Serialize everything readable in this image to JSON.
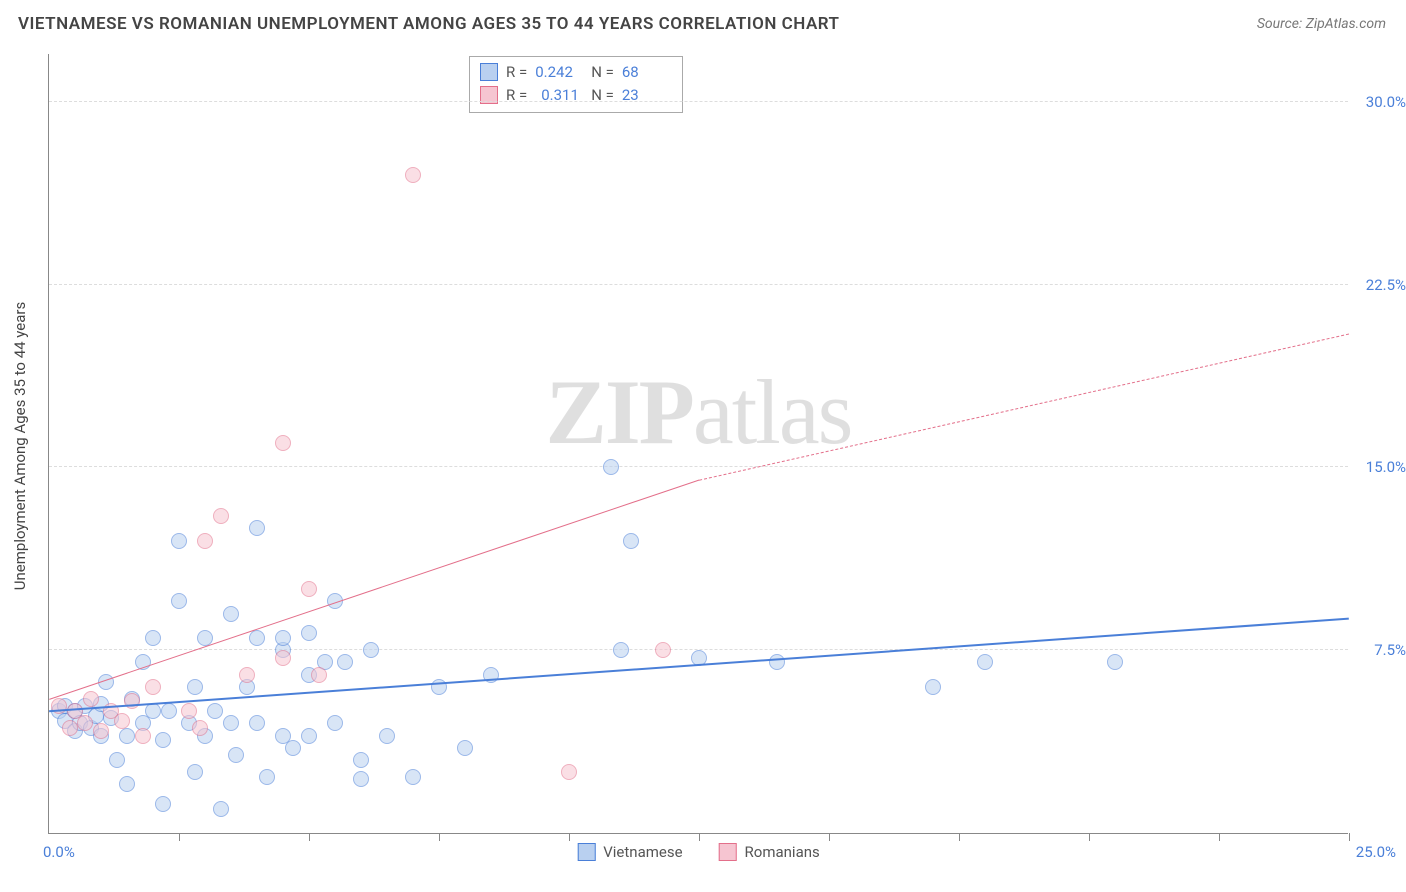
{
  "title": "VIETNAMESE VS ROMANIAN UNEMPLOYMENT AMONG AGES 35 TO 44 YEARS CORRELATION CHART",
  "source_prefix": "Source: ",
  "source_name": "ZipAtlas.com",
  "watermark_a": "ZIP",
  "watermark_b": "atlas",
  "chart": {
    "type": "scatter",
    "y_axis_label": "Unemployment Among Ages 35 to 44 years",
    "xlim": [
      0,
      25
    ],
    "ylim": [
      0,
      32
    ],
    "y_ticks": [
      7.5,
      15.0,
      22.5,
      30.0
    ],
    "y_tick_labels": [
      "7.5%",
      "15.0%",
      "22.5%",
      "30.0%"
    ],
    "x_ticks": [
      2.5,
      5,
      7.5,
      10,
      12.5,
      15,
      17.5,
      20,
      22.5,
      25
    ],
    "x_origin_label": "0.0%",
    "x_max_label": "25.0%",
    "background_color": "#ffffff",
    "grid_color": "#dddddd",
    "axis_color": "#888888",
    "tick_label_color": "#4a7fd8",
    "point_radius": 8,
    "point_opacity": 0.55,
    "series": [
      {
        "name": "Vietnamese",
        "stroke": "#4a7fd8",
        "fill": "#b9d0f0",
        "r_label": "R =",
        "r_value": "0.242",
        "n_label": "N =",
        "n_value": "68",
        "trend": {
          "x1": 0,
          "y1": 5.0,
          "x2": 25,
          "y2": 8.8,
          "width": 2.5,
          "dash": false
        },
        "points": [
          [
            0.2,
            5.0
          ],
          [
            0.3,
            4.6
          ],
          [
            0.3,
            5.2
          ],
          [
            0.5,
            4.2
          ],
          [
            0.5,
            5.0
          ],
          [
            0.6,
            4.5
          ],
          [
            0.7,
            5.2
          ],
          [
            0.8,
            4.3
          ],
          [
            0.9,
            4.8
          ],
          [
            1.0,
            4.0
          ],
          [
            1.0,
            5.3
          ],
          [
            1.1,
            6.2
          ],
          [
            1.2,
            4.7
          ],
          [
            1.3,
            3.0
          ],
          [
            1.5,
            2.0
          ],
          [
            1.5,
            4.0
          ],
          [
            1.6,
            5.5
          ],
          [
            1.8,
            4.5
          ],
          [
            1.8,
            7.0
          ],
          [
            2.0,
            5.0
          ],
          [
            2.0,
            8.0
          ],
          [
            2.2,
            1.2
          ],
          [
            2.2,
            3.8
          ],
          [
            2.3,
            5.0
          ],
          [
            2.5,
            12.0
          ],
          [
            2.5,
            9.5
          ],
          [
            2.7,
            4.5
          ],
          [
            2.8,
            2.5
          ],
          [
            2.8,
            6.0
          ],
          [
            3.0,
            4.0
          ],
          [
            3.0,
            8.0
          ],
          [
            3.2,
            5.0
          ],
          [
            3.3,
            1.0
          ],
          [
            3.5,
            4.5
          ],
          [
            3.5,
            9.0
          ],
          [
            3.6,
            3.2
          ],
          [
            3.8,
            6.0
          ],
          [
            4.0,
            4.5
          ],
          [
            4.0,
            8.0
          ],
          [
            4.0,
            12.5
          ],
          [
            4.2,
            2.3
          ],
          [
            4.5,
            7.5
          ],
          [
            4.5,
            4.0
          ],
          [
            4.5,
            8.0
          ],
          [
            4.7,
            3.5
          ],
          [
            5.0,
            6.5
          ],
          [
            5.0,
            8.2
          ],
          [
            5.0,
            4.0
          ],
          [
            5.3,
            7.0
          ],
          [
            5.5,
            9.5
          ],
          [
            5.5,
            4.5
          ],
          [
            5.7,
            7.0
          ],
          [
            6.0,
            3.0
          ],
          [
            6.0,
            2.2
          ],
          [
            6.2,
            7.5
          ],
          [
            6.5,
            4.0
          ],
          [
            7.0,
            2.3
          ],
          [
            7.5,
            6.0
          ],
          [
            8.0,
            3.5
          ],
          [
            8.5,
            6.5
          ],
          [
            10.8,
            15.0
          ],
          [
            11.2,
            12.0
          ],
          [
            12.5,
            7.2
          ],
          [
            17.0,
            6.0
          ],
          [
            18.0,
            7.0
          ],
          [
            20.5,
            7.0
          ],
          [
            11.0,
            7.5
          ],
          [
            14.0,
            7.0
          ]
        ]
      },
      {
        "name": "Romanians",
        "stroke": "#e36f8a",
        "fill": "#f6c5d1",
        "r_label": "R =",
        "r_value": "0.311",
        "n_label": "N =",
        "n_value": "23",
        "trend_solid": {
          "x1": 0,
          "y1": 5.5,
          "x2": 12.5,
          "y2": 14.5,
          "width": 1.8
        },
        "trend_dash": {
          "x1": 12.5,
          "y1": 14.5,
          "x2": 25,
          "y2": 20.5,
          "width": 1.5
        },
        "points": [
          [
            0.2,
            5.2
          ],
          [
            0.4,
            4.3
          ],
          [
            0.5,
            5.0
          ],
          [
            0.7,
            4.5
          ],
          [
            0.8,
            5.5
          ],
          [
            1.0,
            4.2
          ],
          [
            1.2,
            5.0
          ],
          [
            1.4,
            4.6
          ],
          [
            1.6,
            5.4
          ],
          [
            1.8,
            4.0
          ],
          [
            2.0,
            6.0
          ],
          [
            2.7,
            5.0
          ],
          [
            2.9,
            4.3
          ],
          [
            3.0,
            12.0
          ],
          [
            3.3,
            13.0
          ],
          [
            3.8,
            6.5
          ],
          [
            4.5,
            16.0
          ],
          [
            4.5,
            7.2
          ],
          [
            5.0,
            10.0
          ],
          [
            5.2,
            6.5
          ],
          [
            7.0,
            27.0
          ],
          [
            10.0,
            2.5
          ],
          [
            11.8,
            7.5
          ]
        ]
      }
    ],
    "stats_box": {
      "border_color": "#aaaaaa"
    },
    "bottom_legend": [
      "Vietnamese",
      "Romanians"
    ]
  }
}
